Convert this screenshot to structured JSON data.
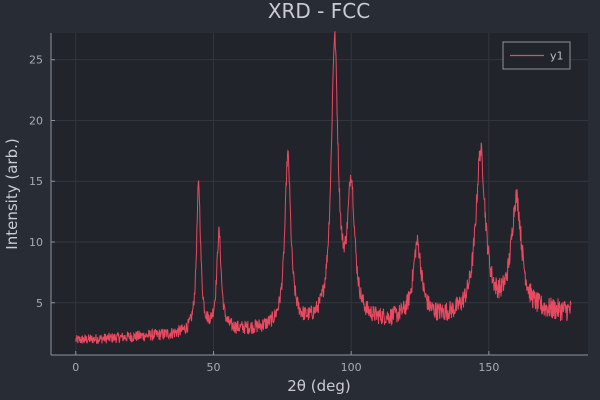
{
  "chart_data": {
    "type": "line",
    "title": "XRD - FCC",
    "xlabel": "2θ (deg)",
    "ylabel": "Intensity (arb.)",
    "xlim": [
      -9,
      186
    ],
    "ylim": [
      0.7,
      27.2
    ],
    "xticks": [
      0,
      50,
      100,
      150
    ],
    "yticks": [
      5,
      10,
      15,
      20,
      25
    ],
    "grid": true,
    "legend": "top-right",
    "colors": {
      "background": "#282c34",
      "plot_background": "#21242b",
      "grid": "#32363e",
      "axis": "#8e929a",
      "line": "#ea4a60"
    },
    "series": [
      {
        "name": "y1",
        "x_range": [
          0,
          180
        ],
        "baseline": {
          "start": 1.9,
          "end": 4.2
        },
        "peaks": [
          {
            "x": 44.6,
            "height": 15.1
          },
          {
            "x": 52.0,
            "height": 11.0
          },
          {
            "x": 77.0,
            "height": 17.0
          },
          {
            "x": 94.0,
            "height": 26.0
          },
          {
            "x": 100.0,
            "height": 14.0
          },
          {
            "x": 124.0,
            "height": 9.2
          },
          {
            "x": 147.0,
            "height": 16.4
          },
          {
            "x": 160.0,
            "height": 12.4
          }
        ]
      }
    ]
  }
}
